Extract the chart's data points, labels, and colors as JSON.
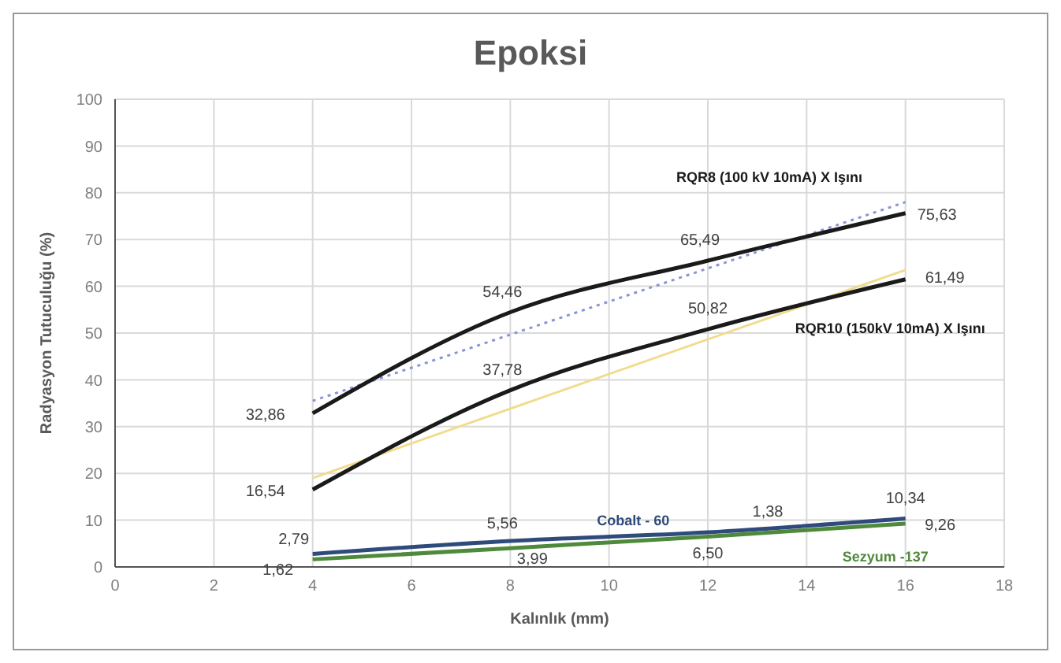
{
  "chart_data": {
    "type": "line",
    "title": "Epoksi",
    "xlabel": "Kalınlık (mm)",
    "ylabel": "Radyasyon Tutuculuğu (%)",
    "xlim": [
      0,
      18
    ],
    "xticks": [
      0,
      2,
      4,
      6,
      8,
      10,
      12,
      14,
      16,
      18
    ],
    "ylim": [
      0,
      100
    ],
    "yticks": [
      0,
      10,
      20,
      30,
      40,
      50,
      60,
      70,
      80,
      90,
      100
    ],
    "grid": true,
    "marker": "none",
    "line_style": "solid",
    "annotations": [
      "1,38"
    ],
    "series": [
      {
        "name": "RQR8 (100 kV 10mA) X Işını",
        "color": "#1a1a1a",
        "x": [
          4,
          8,
          12,
          16
        ],
        "values": [
          32.86,
          54.46,
          65.49,
          75.63
        ],
        "value_labels": [
          "32,86",
          "54,46",
          "65,49",
          "75,63"
        ]
      },
      {
        "name": "RQR10 (150kV 10mA) X Işını",
        "color": "#1a1a1a",
        "x": [
          4,
          8,
          12,
          16
        ],
        "values": [
          16.54,
          37.78,
          50.82,
          61.49
        ],
        "value_labels": [
          "16,54",
          "37,78",
          "50,82",
          "61,49"
        ]
      },
      {
        "name": "Cobalt - 60",
        "color": "#2f4b7c",
        "x": [
          4,
          8,
          12,
          16
        ],
        "values": [
          2.79,
          5.56,
          7.4,
          10.34
        ],
        "value_labels": [
          "2,79",
          "5,56",
          null,
          "10,34"
        ]
      },
      {
        "name": "Sezyum -137",
        "color": "#4f8a3c",
        "x": [
          4,
          8,
          12,
          16
        ],
        "values": [
          1.62,
          3.99,
          6.5,
          9.26
        ],
        "value_labels": [
          "1,62",
          "3,99",
          "6,50",
          "9,26"
        ]
      },
      {
        "type": "line",
        "color": "#8a94d8",
        "x": [
          4,
          16
        ],
        "values": [
          35.5,
          78
        ],
        "line_style": "dotted"
      },
      {
        "type": "line",
        "color": "#f0dc8c",
        "x": [
          4,
          16
        ],
        "values": [
          19,
          63.5
        ],
        "line_style": "solid"
      }
    ]
  }
}
